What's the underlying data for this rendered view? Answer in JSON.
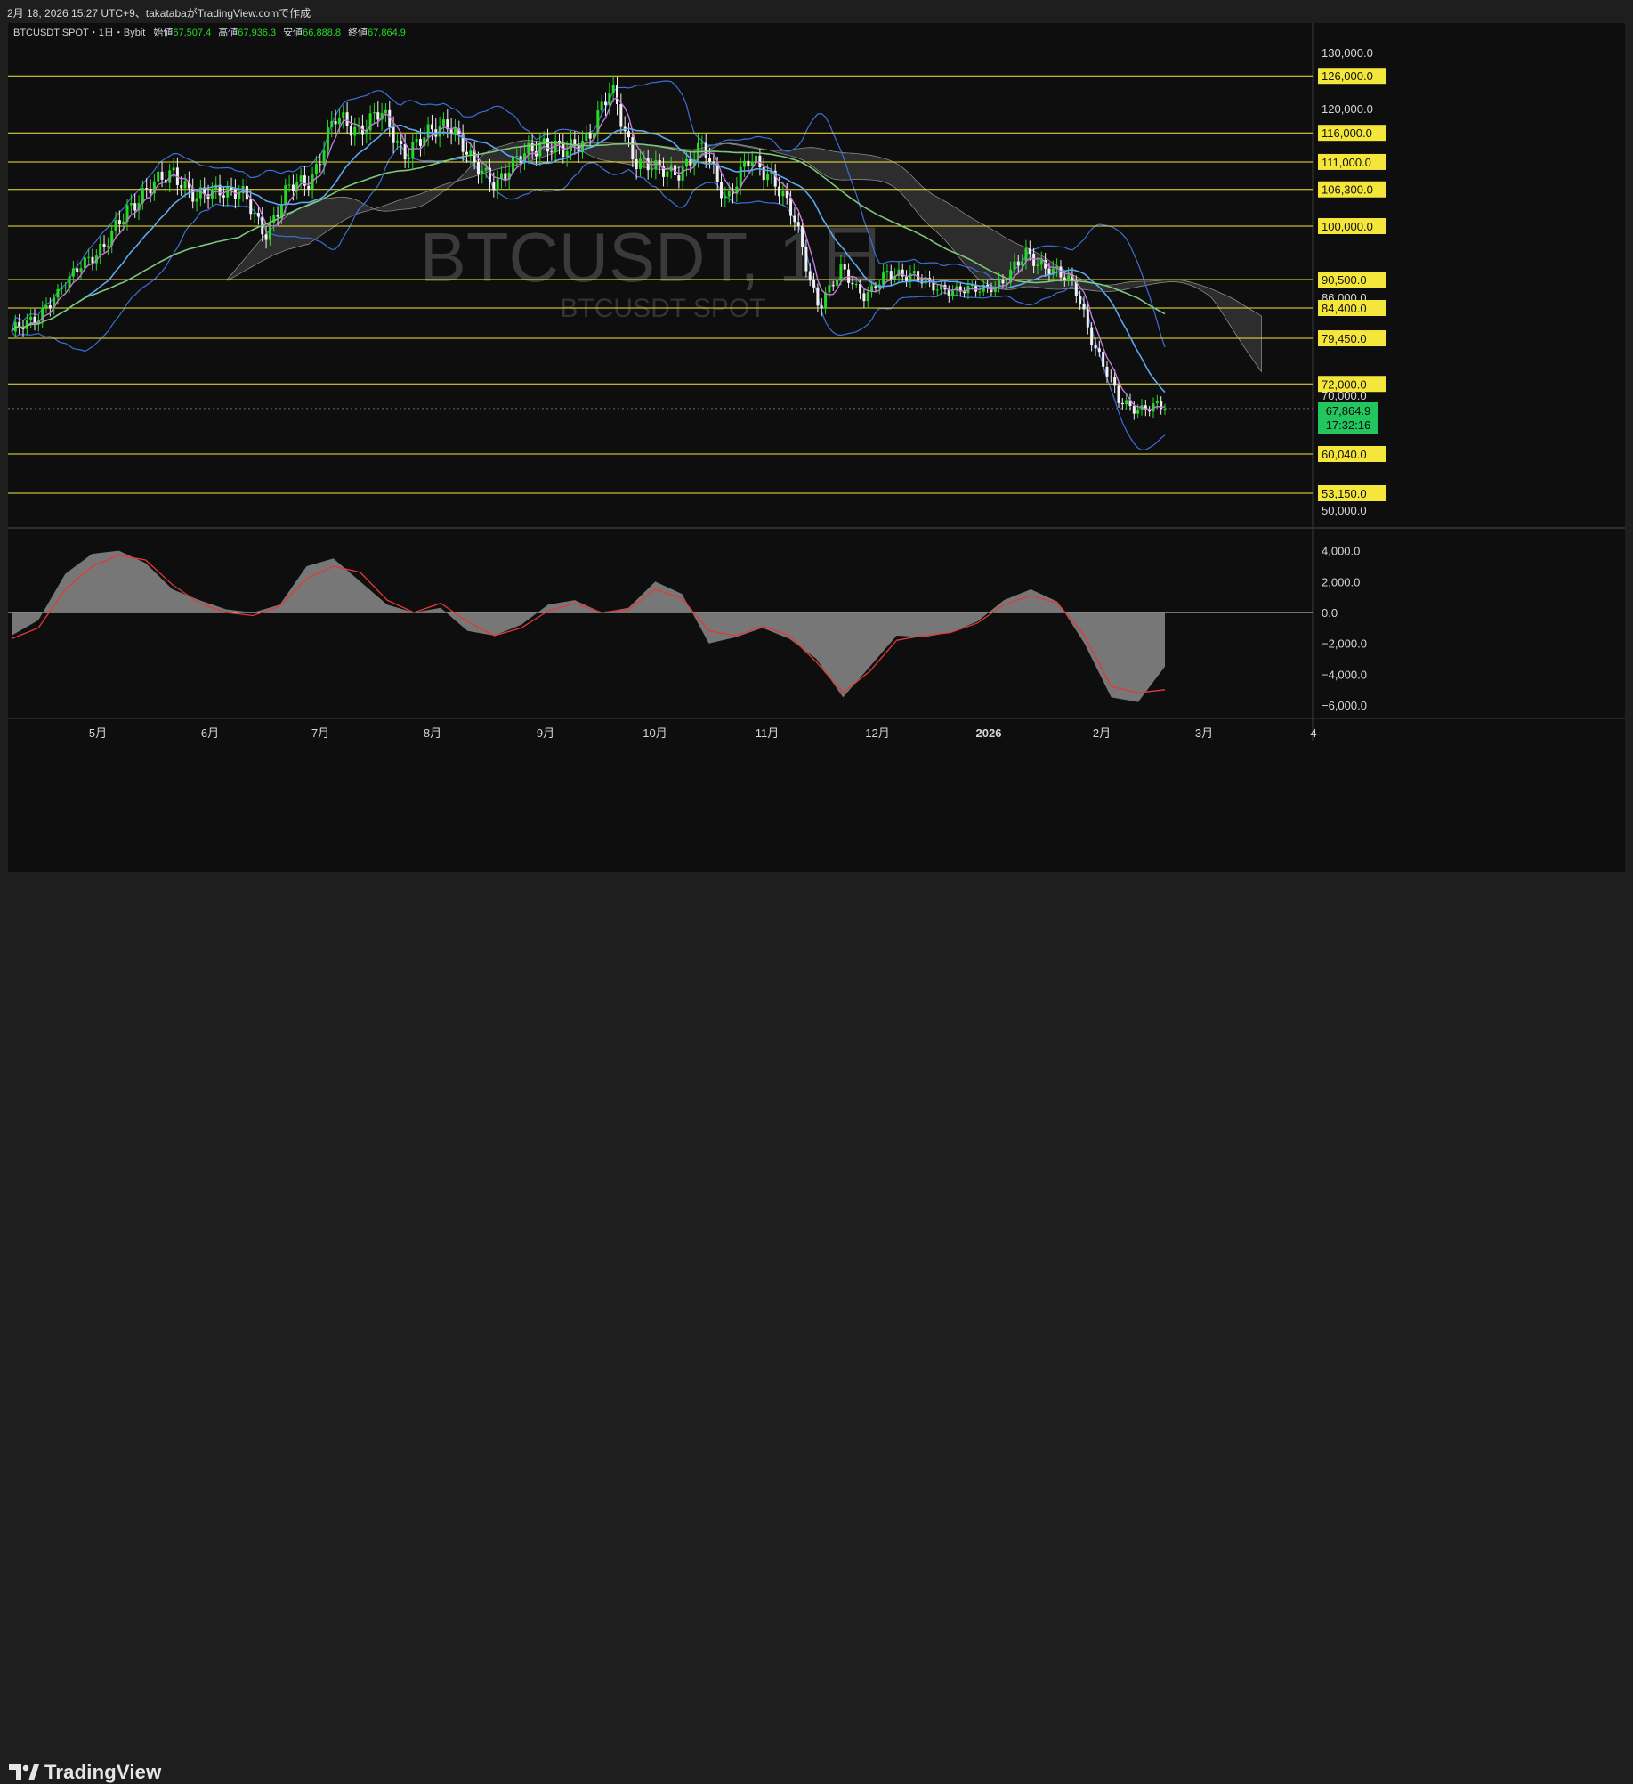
{
  "header": {
    "text": "2月 18, 2026 15:27 UTC+9、takatabaがTradingView.comで作成"
  },
  "legend": {
    "symbol": "BTCUSDT SPOT・1日・Bybit",
    "open_label": "始値",
    "open": "67,507.4",
    "high_label": "高値",
    "high": "67,936.3",
    "low_label": "安値",
    "low": "66,888.8",
    "close_label": "終値",
    "close": "67,864.9"
  },
  "watermark": {
    "title": "BTCUSDT, 1日",
    "subtitle": "BTCUSDT SPOT"
  },
  "price_tag": {
    "price": "67,864.9",
    "countdown": "17:32:16"
  },
  "brand": {
    "name": "TradingView"
  },
  "colors": {
    "up": "#26d926",
    "down": "#f0f0f0",
    "level_line": "#f5e63b",
    "level_tag": "#f5e63b",
    "bb": "#3d6fd8",
    "ma_fast": "#c07ad8",
    "ma_mid": "#5ba7f0",
    "ma_slow": "#7cc77c",
    "cloud": "#555555",
    "macd_fill": "#8a8a8a",
    "signal": "#e03a3a",
    "price_tag": "#22c55e"
  },
  "chart_data": [
    {
      "type": "candlestick",
      "title": "BTCUSDT SPOT・1日・Bybit",
      "x_labels": [
        "5月",
        "6月",
        "7月",
        "8月",
        "9月",
        "10月",
        "11月",
        "12月",
        "2026",
        "2月",
        "3月",
        "4"
      ],
      "y_ticks": [
        130000,
        120000,
        90500,
        86000,
        70000,
        50000
      ],
      "ylim": [
        46000,
        136000
      ],
      "horizontal_levels": [
        126000,
        116000,
        111000,
        106300,
        100000,
        90500,
        84400,
        79450,
        72000,
        60040,
        53150
      ],
      "last_price": 67864.9,
      "close_series": [
        80000,
        83000,
        86500,
        94000,
        95500,
        103500,
        106000,
        110000,
        104000,
        107000,
        105000,
        99000,
        106000,
        108500,
        118000,
        117000,
        119000,
        113000,
        115000,
        118500,
        110000,
        108000,
        111000,
        115000,
        112000,
        116000,
        123000,
        112000,
        109000,
        110000,
        113000,
        105000,
        111000,
        109000,
        100000,
        85000,
        92000,
        87000,
        91000,
        92000,
        88000,
        88500,
        87500,
        90500,
        94500,
        93000,
        89000,
        78000,
        69000,
        68000,
        67864.9
      ]
    },
    {
      "type": "area",
      "title": "MACD",
      "y_ticks": [
        4000,
        2000,
        0,
        -2000,
        -4000,
        -6000
      ],
      "ylim": [
        -7000,
        5000
      ],
      "macd": [
        -1500,
        -500,
        2500,
        3800,
        4000,
        3200,
        1500,
        800,
        200,
        0,
        500,
        3000,
        3500,
        2000,
        500,
        0,
        300,
        -1200,
        -1500,
        -800,
        500,
        800,
        0,
        300,
        2000,
        1200,
        -2000,
        -1600,
        -1000,
        -1700,
        -3000,
        -5500,
        -3500,
        -1500,
        -1600,
        -1300,
        -600,
        800,
        1500,
        700,
        -2000,
        -5500,
        -5800,
        -3500
      ],
      "signal": [
        -1700,
        -1000,
        1500,
        3000,
        3700,
        3400,
        1800,
        600,
        0,
        -200,
        400,
        2200,
        3000,
        2600,
        800,
        0,
        600,
        -600,
        -1500,
        -1000,
        100,
        600,
        0,
        200,
        1500,
        900,
        -1200,
        -1500,
        -900,
        -1500,
        -3200,
        -5200,
        -3800,
        -1800,
        -1500,
        -1300,
        -700,
        500,
        1100,
        600,
        -1500,
        -4800,
        -5200,
        -5000
      ]
    }
  ]
}
